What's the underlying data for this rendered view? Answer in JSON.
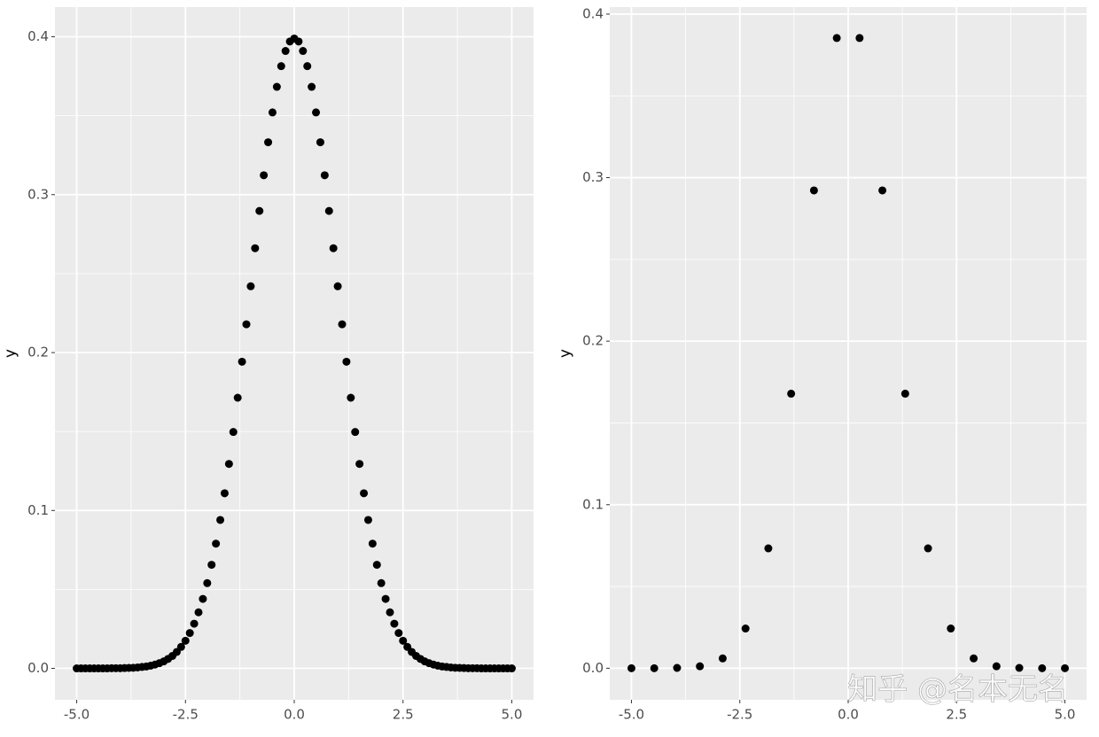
{
  "chart_data": [
    {
      "type": "scatter",
      "ylabel": "y",
      "color": "#000000",
      "grid": true,
      "x": [
        -5.0,
        -4.9,
        -4.8,
        -4.7,
        -4.6,
        -4.5,
        -4.4,
        -4.3,
        -4.2,
        -4.1,
        -4.0,
        -3.9,
        -3.8,
        -3.7,
        -3.6,
        -3.5,
        -3.4,
        -3.3,
        -3.2,
        -3.1,
        -3.0,
        -2.9,
        -2.8,
        -2.7,
        -2.6,
        -2.5,
        -2.4,
        -2.3,
        -2.2,
        -2.1,
        -2.0,
        -1.9,
        -1.8,
        -1.7,
        -1.6,
        -1.5,
        -1.4,
        -1.3,
        -1.2,
        -1.1,
        -1.0,
        -0.9,
        -0.8,
        -0.7,
        -0.6,
        -0.5,
        -0.4,
        -0.3,
        -0.2,
        -0.1,
        0.0,
        0.1,
        0.2,
        0.3,
        0.4,
        0.5,
        0.6,
        0.7,
        0.8,
        0.9,
        1.0,
        1.1,
        1.2,
        1.3,
        1.4,
        1.5,
        1.6,
        1.7,
        1.8,
        1.9,
        2.0,
        2.1,
        2.2,
        2.3,
        2.4,
        2.5,
        2.6,
        2.7,
        2.8,
        2.9,
        3.0,
        3.1,
        3.2,
        3.3,
        3.4,
        3.5,
        3.6,
        3.7,
        3.8,
        3.9,
        4.0,
        4.1,
        4.2,
        4.3,
        4.4,
        4.5,
        4.6,
        4.7,
        4.8,
        4.9,
        5.0
      ],
      "values": [
        0,
        0,
        0,
        0,
        0,
        0,
        0,
        0,
        0.0001,
        0.0001,
        0.0001,
        0.0002,
        0.0003,
        0.0004,
        0.0006,
        0.0009,
        0.0012,
        0.0017,
        0.0024,
        0.0033,
        0.0044,
        0.006,
        0.0079,
        0.0104,
        0.0136,
        0.0175,
        0.0224,
        0.0283,
        0.0355,
        0.044,
        0.054,
        0.0656,
        0.079,
        0.094,
        0.1109,
        0.1295,
        0.1497,
        0.1714,
        0.1942,
        0.2179,
        0.242,
        0.2661,
        0.2897,
        0.3123,
        0.3332,
        0.3521,
        0.3683,
        0.3814,
        0.391,
        0.397,
        0.3989,
        0.397,
        0.391,
        0.3814,
        0.3683,
        0.3521,
        0.3332,
        0.3123,
        0.2897,
        0.2661,
        0.242,
        0.2179,
        0.1942,
        0.1714,
        0.1497,
        0.1295,
        0.1109,
        0.094,
        0.079,
        0.0656,
        0.054,
        0.044,
        0.0355,
        0.0283,
        0.0224,
        0.0175,
        0.0136,
        0.0104,
        0.0079,
        0.006,
        0.0044,
        0.0033,
        0.0024,
        0.0017,
        0.0012,
        0.0009,
        0.0006,
        0.0004,
        0.0003,
        0.0002,
        0.0001,
        0.0001,
        0.0001,
        0,
        0,
        0,
        0,
        0,
        0,
        0,
        0
      ],
      "xlim": [
        -5.5,
        5.5
      ],
      "ylim": [
        -0.0199,
        0.4188
      ],
      "xticks": [
        {
          "value": -5,
          "label": "-5.0"
        },
        {
          "value": -2.5,
          "label": "-2.5"
        },
        {
          "value": 0,
          "label": "0.0"
        },
        2.5,
        {
          "value": 5,
          "label": "5.0"
        }
      ],
      "yticks": [
        {
          "value": 0,
          "label": "0.0"
        },
        0.1,
        0.2,
        0.3,
        0.4
      ]
    },
    {
      "type": "scatter",
      "ylabel": "y",
      "color": "#000000",
      "grid": true,
      "x": [
        -5,
        -4.474,
        -3.947,
        -3.421,
        -2.895,
        -2.368,
        -1.842,
        -1.316,
        -0.789,
        -0.263,
        0.263,
        0.789,
        1.316,
        1.842,
        2.368,
        2.895,
        3.421,
        3.947,
        4.474,
        5
      ],
      "values": [
        0,
        0,
        0.0002,
        0.0012,
        0.006,
        0.0243,
        0.0733,
        0.1679,
        0.2922,
        0.3854,
        0.3854,
        0.2922,
        0.1679,
        0.0733,
        0.0243,
        0.006,
        0.0012,
        0.0002,
        0,
        0
      ],
      "xlim": [
        -5.5,
        5.5
      ],
      "ylim": [
        -0.0193,
        0.4043
      ],
      "xticks": [
        {
          "value": -5,
          "label": "-5.0"
        },
        {
          "value": -2.5,
          "label": "-2.5"
        },
        {
          "value": 0,
          "label": "0.0"
        },
        2.5,
        {
          "value": 5,
          "label": "5.0"
        }
      ],
      "yticks": [
        {
          "value": 0,
          "label": "0.0"
        },
        0.1,
        0.2,
        0.3,
        0.4
      ],
      "watermark": "知乎 @名本无名"
    }
  ]
}
